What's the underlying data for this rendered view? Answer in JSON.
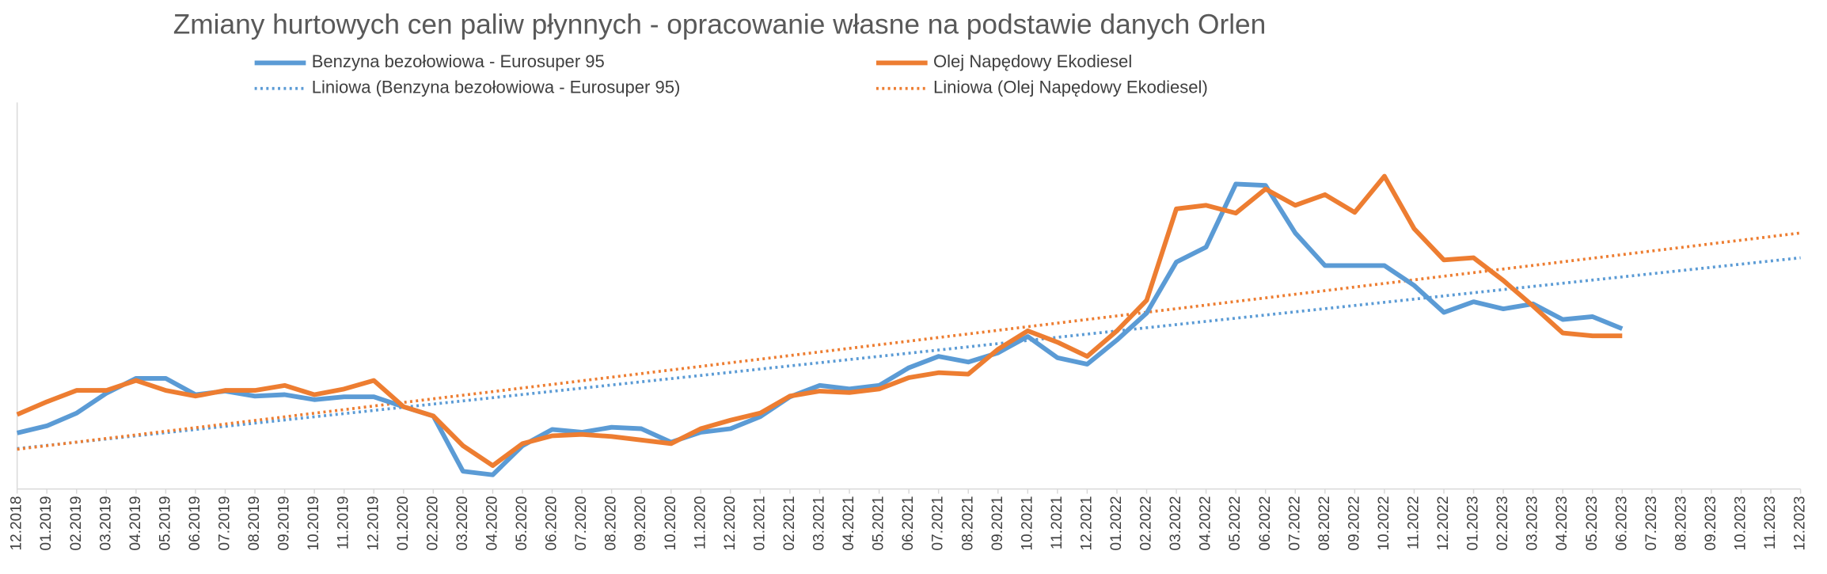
{
  "chart_data": {
    "type": "line",
    "title": "Zmiany hurtowych cen paliw płynnych - opracowanie własne na podstawie danych Orlen",
    "categories": [
      "12.2018",
      "01.2019",
      "02.2019",
      "03.2019",
      "04.2019",
      "05.2019",
      "06.2019",
      "07.2019",
      "08.2019",
      "09.2019",
      "10.2019",
      "11.2019",
      "12.2019",
      "01.2020",
      "02.2020",
      "03.2020",
      "04.2020",
      "05.2020",
      "06.2020",
      "07.2020",
      "08.2020",
      "09.2020",
      "10.2020",
      "11.2020",
      "12.2020",
      "01.2021",
      "02.2021",
      "03.2021",
      "04.2021",
      "05.2021",
      "06.2021",
      "07.2021",
      "08.2021",
      "09.2021",
      "10.2021",
      "11.2021",
      "12.2021",
      "01.2022",
      "02.2022",
      "03.2022",
      "04.2022",
      "05.2022",
      "06.2022",
      "07.2022",
      "08.2022",
      "09.2022",
      "10.2022",
      "11.2022",
      "12.2022",
      "01.2023",
      "02.2023",
      "03.2023",
      "04.2023",
      "05.2023",
      "06.2023",
      "07.2023",
      "08.2023",
      "09.2023",
      "10.2023",
      "11.2023",
      "12.2023"
    ],
    "series": [
      {
        "name": "Benzyna bezołowiowa - Eurosuper 95",
        "color": "#5b9bd5",
        "values": [
          3490,
          3590,
          3770,
          4050,
          4260,
          4260,
          4030,
          4080,
          4010,
          4030,
          3960,
          4000,
          4000,
          3860,
          3730,
          2950,
          2900,
          3310,
          3540,
          3500,
          3570,
          3550,
          3360,
          3500,
          3550,
          3720,
          4000,
          4160,
          4110,
          4160,
          4410,
          4570,
          4490,
          4620,
          4850,
          4550,
          4460,
          4800,
          5180,
          5900,
          6110,
          7000,
          6980,
          6310,
          5850,
          5850,
          5850,
          5570,
          5190,
          5340,
          5240,
          5310,
          5090,
          5130,
          4960,
          null,
          null,
          null,
          null,
          null,
          null
        ]
      },
      {
        "name": "Olej Napędowy Ekodiesel",
        "color": "#ed7d31",
        "values": [
          3750,
          3930,
          4090,
          4090,
          4230,
          4090,
          4010,
          4090,
          4090,
          4160,
          4030,
          4110,
          4230,
          3860,
          3730,
          3310,
          3030,
          3340,
          3450,
          3470,
          3440,
          3390,
          3340,
          3550,
          3670,
          3770,
          4010,
          4080,
          4060,
          4110,
          4270,
          4340,
          4320,
          4670,
          4930,
          4770,
          4570,
          4930,
          5360,
          6650,
          6700,
          6590,
          6930,
          6700,
          6850,
          6600,
          7110,
          6370,
          5930,
          5960,
          5640,
          5280,
          4900,
          4860,
          4860,
          null,
          null,
          null,
          null,
          null,
          null
        ]
      }
    ],
    "trendlines": [
      {
        "name": "Liniowa (Benzyna bezołowiowa - Eurosuper 95)",
        "color": "#5b9bd5",
        "from": 3270,
        "to": 5960
      },
      {
        "name": "Liniowa (Olej Napędowy Ekodiesel)",
        "color": "#ed7d31",
        "from": 3260,
        "to": 6310
      }
    ],
    "ylim": [
      2700,
      8150
    ]
  }
}
